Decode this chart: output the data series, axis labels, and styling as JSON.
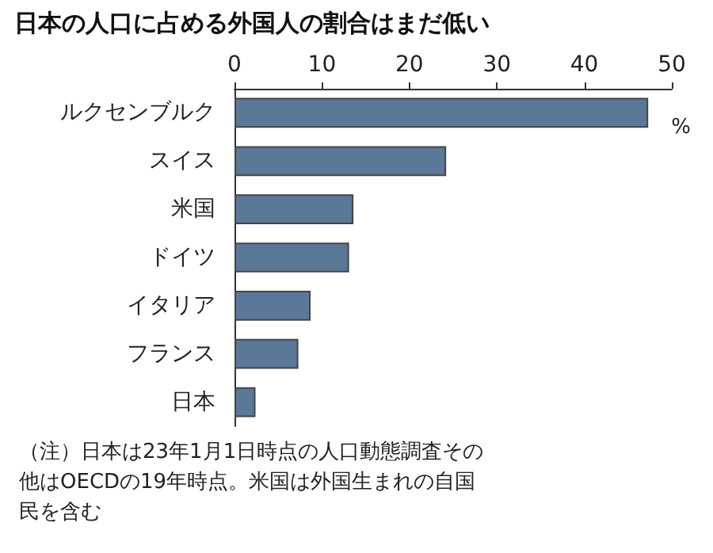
{
  "chart_data": {
    "type": "bar",
    "orientation": "horizontal",
    "title": "日本の人口に占める外国人の割合はまだ低い",
    "xlabel": "%",
    "categories": [
      "ルクセンブルク",
      "スイス",
      "米国",
      "ドイツ",
      "イタリア",
      "フランス",
      "日本"
    ],
    "values": [
      47.3,
      24.2,
      13.6,
      13.1,
      8.7,
      7.3,
      2.4
    ],
    "color": "#5a7898",
    "xlim": [
      0,
      50
    ],
    "xticks": [
      0,
      10,
      20,
      30,
      40,
      50
    ],
    "grid": false,
    "annotations": [
      "（注）日本は23年1月1日時点の人口動態調査その他はOECDの19年時点。米国は外国生まれの自国民を含む"
    ]
  }
}
